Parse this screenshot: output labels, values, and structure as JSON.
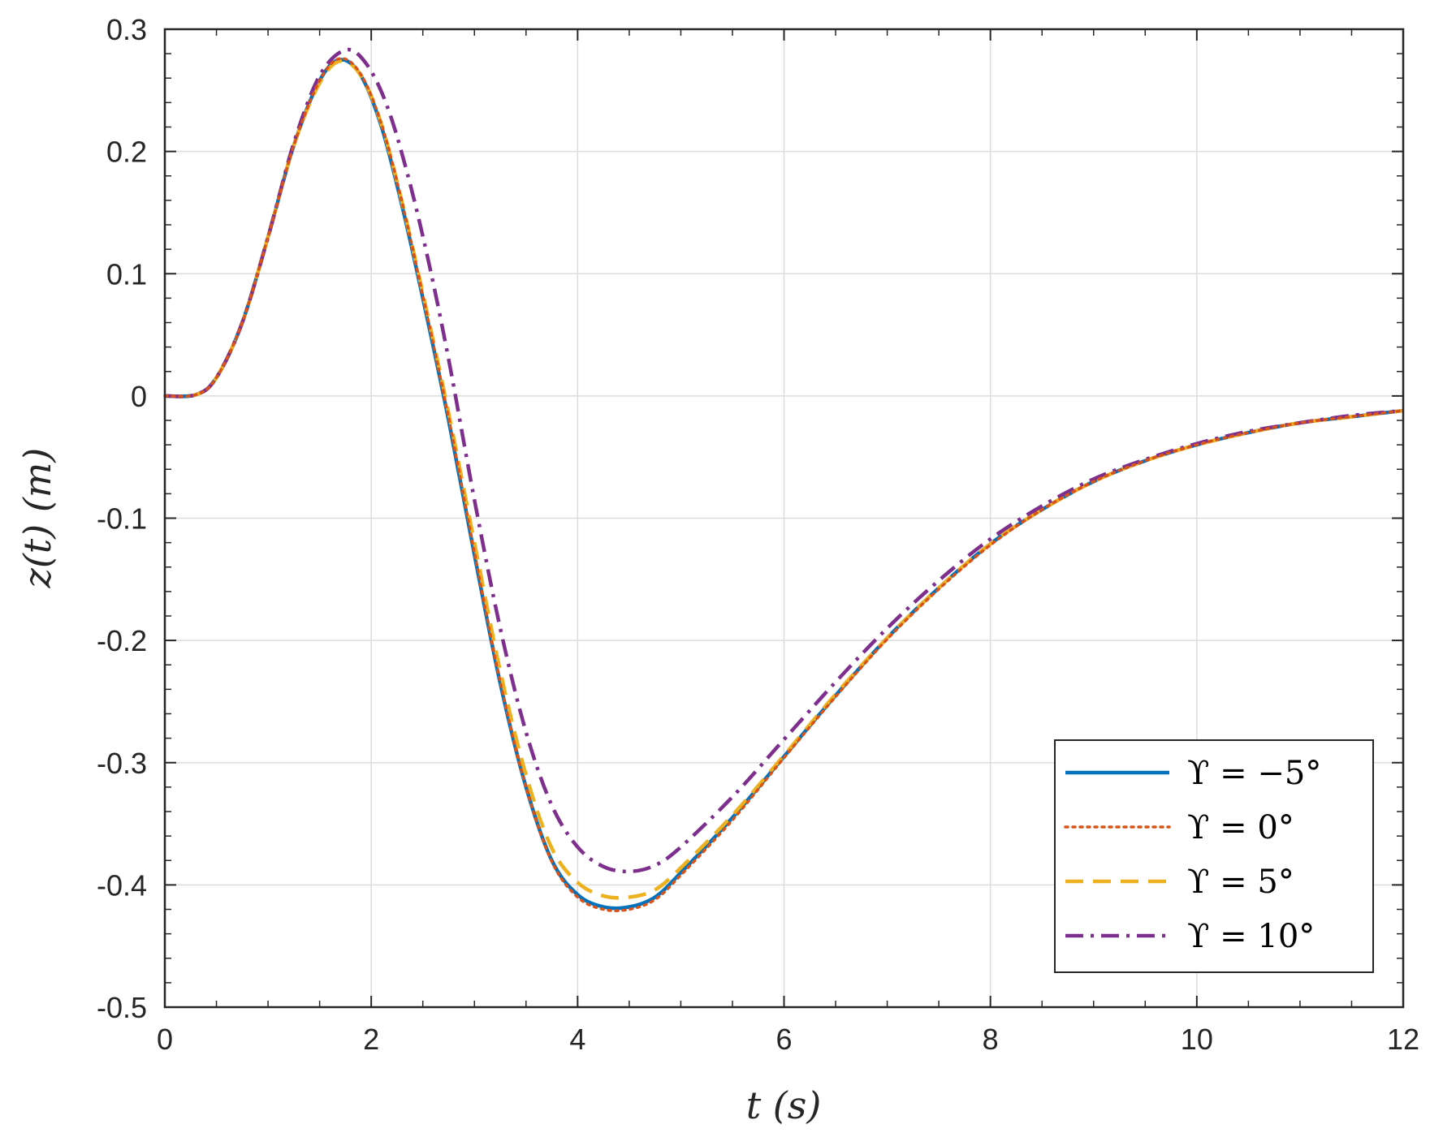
{
  "chart_data": {
    "type": "line",
    "xlabel": "t (s)",
    "ylabel": "z(t) (m)",
    "xlim": [
      0,
      12
    ],
    "ylim": [
      -0.5,
      0.3
    ],
    "xticks": [
      0,
      2,
      4,
      6,
      8,
      10,
      12
    ],
    "xtick_labels": [
      "0",
      "2",
      "4",
      "6",
      "8",
      "10",
      "12"
    ],
    "yticks": [
      0.3,
      0.2,
      0.1,
      0,
      -0.1,
      -0.2,
      -0.3,
      -0.4,
      -0.5
    ],
    "ytick_labels": [
      "0.3",
      "0.2",
      "0.1",
      "0",
      "-0.1",
      "-0.2",
      "-0.3",
      "-0.4",
      "-0.5"
    ],
    "grid": true,
    "legend_position": "bottom-right",
    "series": [
      {
        "name": "ϒ = −5°",
        "color": "#0072BD",
        "style": "solid",
        "x": [
          0,
          0.3,
          0.5,
          0.75,
          1.0,
          1.25,
          1.5,
          1.7,
          1.9,
          2.1,
          2.3,
          2.5,
          2.75,
          3.0,
          3.25,
          3.5,
          3.75,
          4.0,
          4.25,
          4.5,
          4.75,
          5.0,
          5.5,
          6.0,
          6.5,
          7.0,
          7.5,
          8.0,
          8.5,
          9.0,
          9.5,
          10.0,
          10.5,
          11.0,
          11.5,
          12.0
        ],
        "y": [
          0,
          0.001,
          0.015,
          0.06,
          0.13,
          0.205,
          0.258,
          0.275,
          0.262,
          0.22,
          0.155,
          0.08,
          -0.02,
          -0.13,
          -0.235,
          -0.32,
          -0.38,
          -0.408,
          -0.418,
          -0.418,
          -0.41,
          -0.39,
          -0.345,
          -0.295,
          -0.245,
          -0.198,
          -0.157,
          -0.121,
          -0.093,
          -0.07,
          -0.053,
          -0.04,
          -0.03,
          -0.022,
          -0.017,
          -0.012
        ]
      },
      {
        "name": "ϒ = 0°",
        "color": "#D95319",
        "style": "dotted",
        "x": [
          0,
          0.3,
          0.5,
          0.75,
          1.0,
          1.25,
          1.5,
          1.7,
          1.9,
          2.1,
          2.3,
          2.5,
          2.75,
          3.0,
          3.25,
          3.5,
          3.75,
          4.0,
          4.25,
          4.5,
          4.75,
          5.0,
          5.5,
          6.0,
          6.5,
          7.0,
          7.5,
          8.0,
          8.5,
          9.0,
          9.5,
          10.0,
          10.5,
          11.0,
          11.5,
          12.0
        ],
        "y": [
          0,
          0.001,
          0.015,
          0.06,
          0.13,
          0.205,
          0.258,
          0.276,
          0.263,
          0.222,
          0.158,
          0.082,
          -0.018,
          -0.128,
          -0.234,
          -0.32,
          -0.381,
          -0.41,
          -0.42,
          -0.42,
          -0.412,
          -0.392,
          -0.347,
          -0.296,
          -0.246,
          -0.199,
          -0.158,
          -0.122,
          -0.093,
          -0.07,
          -0.053,
          -0.04,
          -0.03,
          -0.022,
          -0.017,
          -0.012
        ]
      },
      {
        "name": "ϒ = 5°",
        "color": "#EDB120",
        "style": "dashed",
        "x": [
          0,
          0.3,
          0.5,
          0.75,
          1.0,
          1.25,
          1.5,
          1.7,
          1.9,
          2.1,
          2.3,
          2.5,
          2.75,
          3.0,
          3.25,
          3.5,
          3.75,
          4.0,
          4.25,
          4.5,
          4.75,
          5.0,
          5.5,
          6.0,
          6.5,
          7.0,
          7.5,
          8.0,
          8.5,
          9.0,
          9.5,
          10.0,
          10.5,
          11.0,
          11.5,
          12.0
        ],
        "y": [
          0,
          0.001,
          0.015,
          0.06,
          0.13,
          0.205,
          0.256,
          0.274,
          0.262,
          0.222,
          0.158,
          0.084,
          -0.014,
          -0.12,
          -0.225,
          -0.31,
          -0.37,
          -0.398,
          -0.409,
          -0.41,
          -0.404,
          -0.386,
          -0.343,
          -0.294,
          -0.244,
          -0.198,
          -0.157,
          -0.121,
          -0.093,
          -0.07,
          -0.053,
          -0.04,
          -0.03,
          -0.022,
          -0.017,
          -0.012
        ]
      },
      {
        "name": "ϒ = 10°",
        "color": "#7E2F8E",
        "style": "dashdot",
        "x": [
          0,
          0.3,
          0.5,
          0.75,
          1.0,
          1.25,
          1.5,
          1.75,
          1.95,
          2.15,
          2.35,
          2.55,
          2.75,
          3.0,
          3.25,
          3.5,
          3.75,
          4.0,
          4.25,
          4.5,
          4.75,
          5.0,
          5.5,
          6.0,
          6.5,
          7.0,
          7.5,
          8.0,
          8.5,
          9.0,
          9.5,
          10.0,
          10.5,
          11.0,
          11.5,
          12.0
        ],
        "y": [
          0,
          0.001,
          0.015,
          0.06,
          0.13,
          0.207,
          0.262,
          0.283,
          0.272,
          0.238,
          0.182,
          0.112,
          0.03,
          -0.085,
          -0.19,
          -0.275,
          -0.335,
          -0.369,
          -0.385,
          -0.389,
          -0.384,
          -0.369,
          -0.328,
          -0.281,
          -0.234,
          -0.19,
          -0.151,
          -0.117,
          -0.09,
          -0.068,
          -0.052,
          -0.039,
          -0.029,
          -0.022,
          -0.016,
          -0.012
        ]
      }
    ]
  }
}
